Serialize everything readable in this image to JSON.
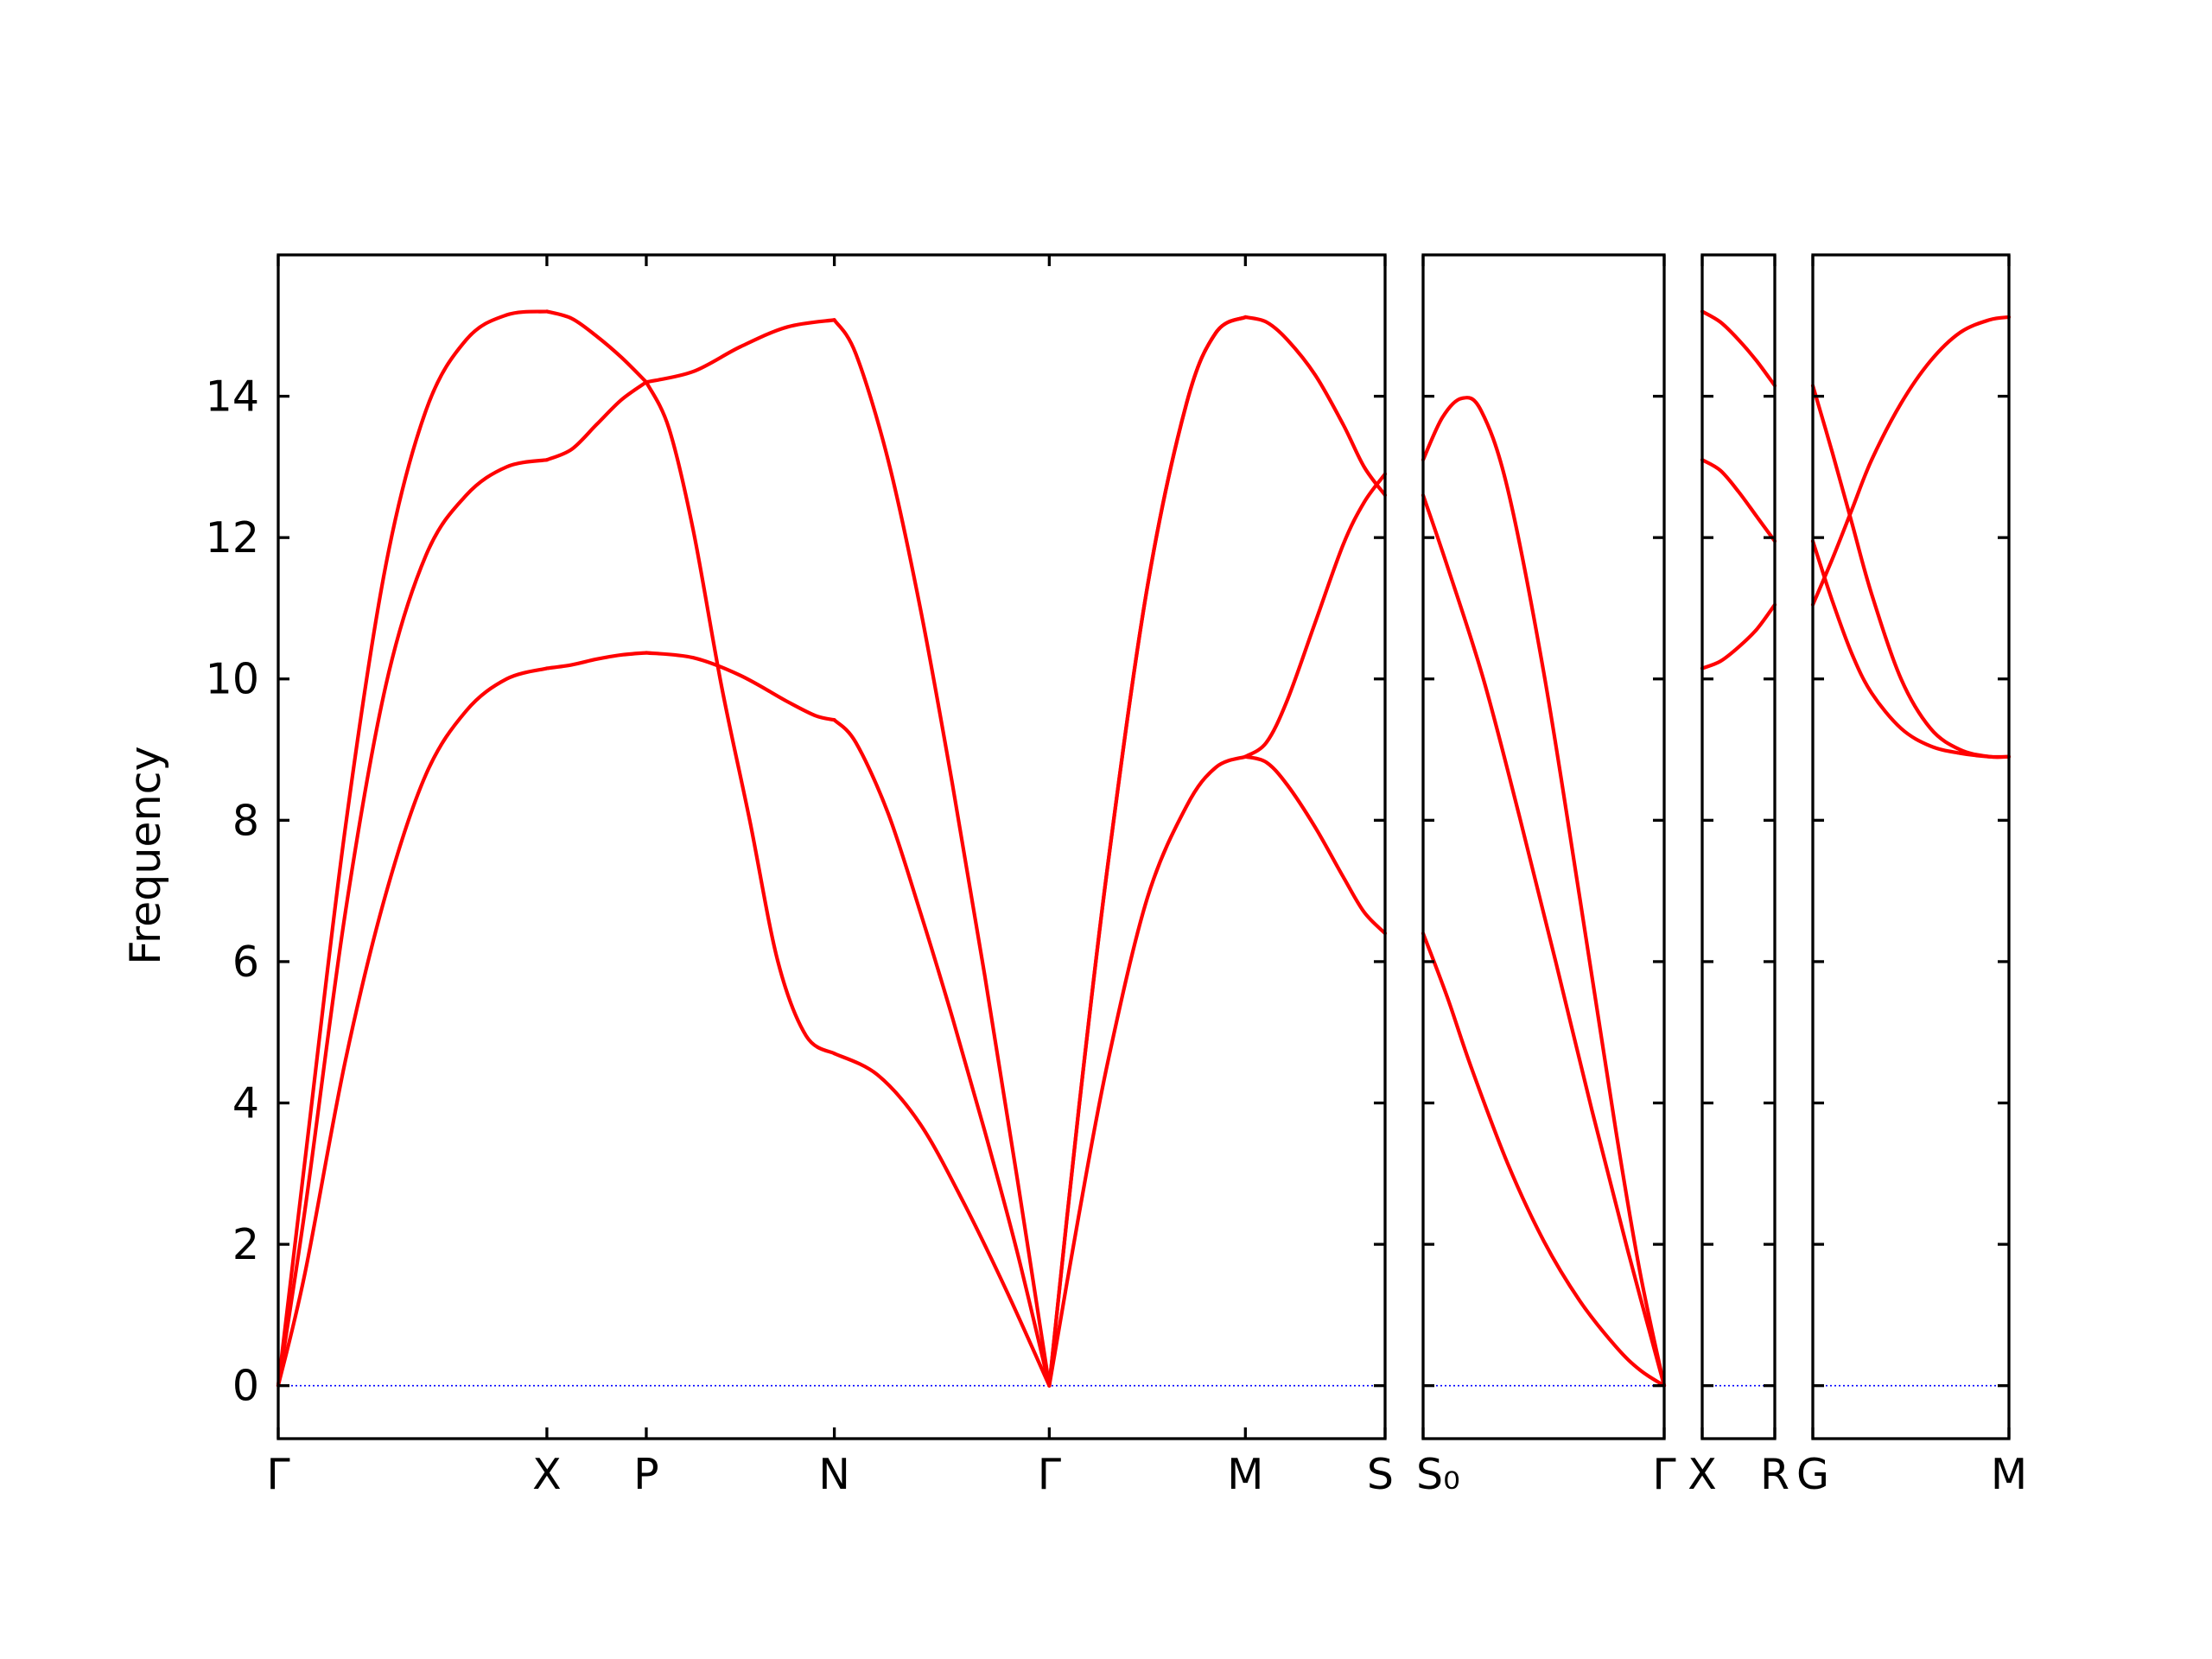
{
  "chart_data": {
    "type": "line",
    "ylabel": "Frequency",
    "ylim": [
      -0.75,
      16.0
    ],
    "yticks": [
      "0",
      "2",
      "4",
      "6",
      "8",
      "10",
      "12",
      "14"
    ],
    "zero_line_color": "#0000ff",
    "band_color": "#ff0000",
    "panels": [
      {
        "xticks": [
          "Γ",
          "X",
          "P",
          "N",
          "Γ",
          "M",
          "S"
        ],
        "segments": [
          {
            "from": "Γ",
            "to": "X",
            "length": 1.0,
            "bands": [
              [
                [
                  0,
                  0
                ],
                [
                  0.1,
                  1.6
                ],
                [
                  0.25,
                  4.6
                ],
                [
                  0.4,
                  6.95
                ],
                [
                  0.55,
                  8.65
                ],
                [
                  0.7,
                  9.55
                ],
                [
                  0.85,
                  10.0
                ],
                [
                  1,
                  10.15
                ]
              ],
              [
                [
                  0,
                  0
                ],
                [
                  0.1,
                  2.5
                ],
                [
                  0.25,
                  6.7
                ],
                [
                  0.4,
                  9.9
                ],
                [
                  0.55,
                  11.75
                ],
                [
                  0.7,
                  12.6
                ],
                [
                  0.85,
                  13.0
                ],
                [
                  1,
                  13.1
                ]
              ],
              [
                [
                  0,
                  0
                ],
                [
                  0.1,
                  3.2
                ],
                [
                  0.25,
                  7.9
                ],
                [
                  0.4,
                  11.6
                ],
                [
                  0.55,
                  13.8
                ],
                [
                  0.7,
                  14.8
                ],
                [
                  0.85,
                  15.15
                ],
                [
                  1,
                  15.2
                ]
              ]
            ]
          },
          {
            "from": "X",
            "to": "P",
            "length": 0.37,
            "bands": [
              [
                [
                  0,
                  10.15
                ],
                [
                  0.25,
                  10.2
                ],
                [
                  0.5,
                  10.28
                ],
                [
                  0.75,
                  10.34
                ],
                [
                  1,
                  10.37
                ]
              ],
              [
                [
                  0,
                  13.1
                ],
                [
                  0.25,
                  13.25
                ],
                [
                  0.5,
                  13.6
                ],
                [
                  0.75,
                  13.95
                ],
                [
                  1,
                  14.2
                ]
              ],
              [
                [
                  0,
                  15.2
                ],
                [
                  0.25,
                  15.1
                ],
                [
                  0.5,
                  14.85
                ],
                [
                  0.75,
                  14.55
                ],
                [
                  1,
                  14.2
                ]
              ]
            ]
          },
          {
            "from": "P",
            "to": "N",
            "length": 0.7,
            "bands": [
              [
                [
                  0,
                  10.37
                ],
                [
                  0.25,
                  10.3
                ],
                [
                  0.5,
                  10.05
                ],
                [
                  0.75,
                  9.68
                ],
                [
                  0.9,
                  9.48
                ],
                [
                  1,
                  9.42
                ]
              ],
              [
                [
                  0,
                  14.2
                ],
                [
                  0.25,
                  14.35
                ],
                [
                  0.5,
                  14.7
                ],
                [
                  0.75,
                  14.98
                ],
                [
                  1,
                  15.08
                ]
              ],
              [
                [
                  0,
                  14.2
                ],
                [
                  0.12,
                  13.55
                ],
                [
                  0.25,
                  12.1
                ],
                [
                  0.4,
                  9.9
                ],
                [
                  0.55,
                  8.0
                ],
                [
                  0.7,
                  6.0
                ],
                [
                  0.85,
                  4.95
                ],
                [
                  1,
                  4.7
                ]
              ]
            ]
          },
          {
            "from": "N",
            "to": "Γ",
            "length": 0.8,
            "bands": [
              [
                [
                  0,
                  4.7
                ],
                [
                  0.2,
                  4.4
                ],
                [
                  0.4,
                  3.7
                ],
                [
                  0.6,
                  2.6
                ],
                [
                  0.8,
                  1.35
                ],
                [
                  1,
                  0
                ]
              ],
              [
                [
                  0,
                  9.42
                ],
                [
                  0.1,
                  9.1
                ],
                [
                  0.25,
                  8.1
                ],
                [
                  0.4,
                  6.7
                ],
                [
                  0.55,
                  5.2
                ],
                [
                  0.7,
                  3.6
                ],
                [
                  0.85,
                  1.9
                ],
                [
                  1,
                  0
                ]
              ],
              [
                [
                  0,
                  15.08
                ],
                [
                  0.1,
                  14.6
                ],
                [
                  0.25,
                  13.1
                ],
                [
                  0.4,
                  11.0
                ],
                [
                  0.55,
                  8.5
                ],
                [
                  0.7,
                  5.8
                ],
                [
                  0.85,
                  2.95
                ],
                [
                  1,
                  0
                ]
              ]
            ]
          },
          {
            "from": "Γ",
            "to": "M",
            "length": 0.73,
            "bands": [
              [
                [
                  0,
                  0
                ],
                [
                  0.15,
                  2.4
                ],
                [
                  0.3,
                  4.6
                ],
                [
                  0.5,
                  6.9
                ],
                [
                  0.7,
                  8.2
                ],
                [
                  0.85,
                  8.75
                ],
                [
                  1,
                  8.9
                ]
              ],
              [
                [
                  0,
                  0
                ],
                [
                  0.15,
                  3.9
                ],
                [
                  0.3,
                  7.4
                ],
                [
                  0.5,
                  11.3
                ],
                [
                  0.7,
                  13.9
                ],
                [
                  0.85,
                  14.9
                ],
                [
                  1,
                  15.12
                ]
              ],
              [
                [
                  0,
                  0
                ],
                [
                  0.15,
                  3.9
                ],
                [
                  0.3,
                  7.4
                ],
                [
                  0.5,
                  11.3
                ],
                [
                  0.7,
                  13.9
                ],
                [
                  0.85,
                  14.9
                ],
                [
                  1,
                  15.12
                ]
              ]
            ]
          },
          {
            "from": "M",
            "to": "S",
            "length": 0.52,
            "bands": [
              [
                [
                  0,
                  8.9
                ],
                [
                  0.15,
                  8.82
                ],
                [
                  0.3,
                  8.5
                ],
                [
                  0.5,
                  7.9
                ],
                [
                  0.7,
                  7.2
                ],
                [
                  0.85,
                  6.7
                ],
                [
                  1,
                  6.4
                ]
              ],
              [
                [
                  0,
                  8.9
                ],
                [
                  0.15,
                  9.1
                ],
                [
                  0.3,
                  9.7
                ],
                [
                  0.5,
                  10.8
                ],
                [
                  0.7,
                  11.9
                ],
                [
                  0.85,
                  12.5
                ],
                [
                  1,
                  12.9
                ]
              ],
              [
                [
                  0,
                  15.12
                ],
                [
                  0.15,
                  15.05
                ],
                [
                  0.3,
                  14.8
                ],
                [
                  0.5,
                  14.3
                ],
                [
                  0.7,
                  13.6
                ],
                [
                  0.85,
                  13.0
                ],
                [
                  1,
                  12.6
                ]
              ]
            ]
          }
        ]
      },
      {
        "xticks": [
          "S₀",
          "Γ"
        ],
        "segments": [
          {
            "from": "S₀",
            "to": "Γ",
            "length": 1.0,
            "bands": [
              [
                [
                  0,
                  6.4
                ],
                [
                  0.1,
                  5.5
                ],
                [
                  0.2,
                  4.5
                ],
                [
                  0.35,
                  3.15
                ],
                [
                  0.5,
                  2.05
                ],
                [
                  0.65,
                  1.2
                ],
                [
                  0.8,
                  0.55
                ],
                [
                  0.9,
                  0.22
                ],
                [
                  1,
                  0
                ]
              ],
              [
                [
                  0,
                  12.6
                ],
                [
                  0.1,
                  11.6
                ],
                [
                  0.25,
                  10.0
                ],
                [
                  0.4,
                  8.05
                ],
                [
                  0.55,
                  6.0
                ],
                [
                  0.7,
                  3.9
                ],
                [
                  0.85,
                  1.9
                ],
                [
                  1,
                  0
                ]
              ],
              [
                [
                  0,
                  13.1
                ],
                [
                  0.08,
                  13.7
                ],
                [
                  0.16,
                  13.97
                ],
                [
                  0.24,
                  13.8
                ],
                [
                  0.35,
                  12.7
                ],
                [
                  0.5,
                  10.1
                ],
                [
                  0.65,
                  6.9
                ],
                [
                  0.8,
                  3.6
                ],
                [
                  0.9,
                  1.6
                ],
                [
                  1,
                  0
                ]
              ]
            ]
          }
        ]
      },
      {
        "xticks": [
          "X",
          "R"
        ],
        "segments": [
          {
            "from": "X",
            "to": "R",
            "length": 1.0,
            "bands": [
              [
                [
                  0,
                  10.15
                ],
                [
                  0.25,
                  10.25
                ],
                [
                  0.5,
                  10.45
                ],
                [
                  0.75,
                  10.7
                ],
                [
                  1,
                  11.05
                ]
              ],
              [
                [
                  0,
                  13.1
                ],
                [
                  0.25,
                  12.95
                ],
                [
                  0.5,
                  12.65
                ],
                [
                  0.75,
                  12.3
                ],
                [
                  1,
                  11.95
                ]
              ],
              [
                [
                  0,
                  15.2
                ],
                [
                  0.25,
                  15.05
                ],
                [
                  0.5,
                  14.8
                ],
                [
                  0.75,
                  14.5
                ],
                [
                  1,
                  14.15
                ]
              ]
            ]
          }
        ]
      },
      {
        "xticks": [
          "G",
          "M"
        ],
        "segments": [
          {
            "from": "G",
            "to": "M",
            "length": 1.0,
            "bands": [
              [
                [
                  0,
                  11.05
                ],
                [
                  0.1,
                  11.7
                ],
                [
                  0.2,
                  12.4
                ],
                [
                  0.3,
                  13.1
                ],
                [
                  0.45,
                  13.9
                ],
                [
                  0.6,
                  14.5
                ],
                [
                  0.75,
                  14.9
                ],
                [
                  0.9,
                  15.08
                ],
                [
                  1,
                  15.12
                ]
              ],
              [
                [
                  0,
                  11.95
                ],
                [
                  0.1,
                  11.1
                ],
                [
                  0.2,
                  10.35
                ],
                [
                  0.3,
                  9.8
                ],
                [
                  0.45,
                  9.3
                ],
                [
                  0.6,
                  9.05
                ],
                [
                  0.75,
                  8.95
                ],
                [
                  0.9,
                  8.9
                ],
                [
                  1,
                  8.9
                ]
              ],
              [
                [
                  0,
                  14.15
                ],
                [
                  0.1,
                  13.2
                ],
                [
                  0.2,
                  12.2
                ],
                [
                  0.3,
                  11.2
                ],
                [
                  0.45,
                  10.0
                ],
                [
                  0.6,
                  9.3
                ],
                [
                  0.75,
                  9.0
                ],
                [
                  0.9,
                  8.9
                ],
                [
                  1,
                  8.9
                ]
              ]
            ]
          }
        ]
      }
    ]
  }
}
